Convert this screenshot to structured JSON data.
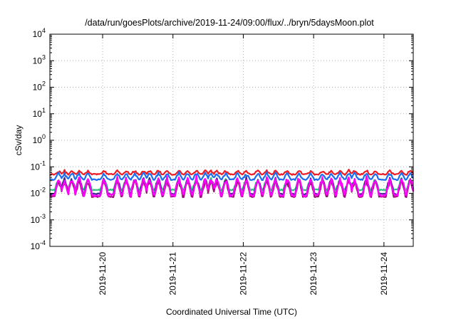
{
  "chart_data": {
    "type": "line",
    "title": "/data/run/goesPlots/archive/2019-11-24/09:00/flux/../bryn/5daysMoon.plot",
    "xlabel": "Coordinated Universal Time (UTC)",
    "ylabel": "cSv/day",
    "yscale": "log",
    "ylim": [
      0.0001,
      10000
    ],
    "xlim": [
      "2019-11-19 06:00",
      "2019-11-24 10:00"
    ],
    "grid": true,
    "x_ticks": [
      {
        "value": "2019-11-20 00:00",
        "label": "2019-11-20"
      },
      {
        "value": "2019-11-21 00:00",
        "label": "2019-11-21"
      },
      {
        "value": "2019-11-22 00:00",
        "label": "2019-11-22"
      },
      {
        "value": "2019-11-23 00:00",
        "label": "2019-11-23"
      },
      {
        "value": "2019-11-24 00:00",
        "label": "2019-11-24"
      }
    ],
    "y_ticks": [
      {
        "value": 0.0001,
        "base": "10",
        "exp": "-4"
      },
      {
        "value": 0.001,
        "base": "10",
        "exp": "-3"
      },
      {
        "value": 0.01,
        "base": "10",
        "exp": "-2"
      },
      {
        "value": 0.1,
        "base": "10",
        "exp": "-1"
      },
      {
        "value": 1,
        "base": "10",
        "exp": "0"
      },
      {
        "value": 10,
        "base": "10",
        "exp": "1"
      },
      {
        "value": 100,
        "base": "10",
        "exp": "2"
      },
      {
        "value": 1000,
        "base": "10",
        "exp": "3"
      },
      {
        "value": 10000,
        "base": "10",
        "exp": "4"
      }
    ],
    "spike_times": [
      "2019-11-19 09:00",
      "2019-11-19 11:00",
      "2019-11-19 13:30",
      "2019-11-19 16:00",
      "2019-11-19 19:00",
      "2019-11-20 00:30",
      "2019-11-20 05:00",
      "2019-11-20 08:00",
      "2019-11-20 11:00",
      "2019-11-20 14:00",
      "2019-11-20 16:00",
      "2019-11-20 19:00",
      "2019-11-20 22:00",
      "2019-11-21 02:00",
      "2019-11-21 05:00",
      "2019-11-21 08:00",
      "2019-11-21 11:00",
      "2019-11-21 13:00",
      "2019-11-21 15:00",
      "2019-11-21 18:00",
      "2019-11-21 22:00",
      "2019-11-22 01:00",
      "2019-11-22 05:00",
      "2019-11-22 08:00",
      "2019-11-22 11:00",
      "2019-11-22 15:00",
      "2019-11-22 19:00",
      "2019-11-22 23:00",
      "2019-11-23 03:00",
      "2019-11-23 06:00",
      "2019-11-23 09:00",
      "2019-11-23 12:00",
      "2019-11-23 14:00",
      "2019-11-23 18:00",
      "2019-11-23 21:00",
      "2019-11-24 02:00",
      "2019-11-24 06:00",
      "2019-11-24 09:00"
    ],
    "series": [
      {
        "color": "#ee1c25",
        "base": 0.052,
        "spike_factor": 1.35,
        "jitter": 0.06
      },
      {
        "color": "#1a6cf0",
        "base": 0.033,
        "spike_factor": 1.7,
        "jitter": 0.05
      },
      {
        "color": "#2ec27e",
        "base": 0.0135,
        "spike_factor": 2.4,
        "jitter": 0.05
      },
      {
        "color": "#3b2a8f",
        "base": 0.0095,
        "spike_factor": 3.5,
        "jitter": 0.05
      },
      {
        "color": "#a0107a",
        "base": 0.0075,
        "spike_factor": 3.8,
        "jitter": 0.05
      },
      {
        "color": "#ff00ff",
        "base": 0.0085,
        "spike_factor": 4.0,
        "jitter": 0.12
      }
    ]
  }
}
